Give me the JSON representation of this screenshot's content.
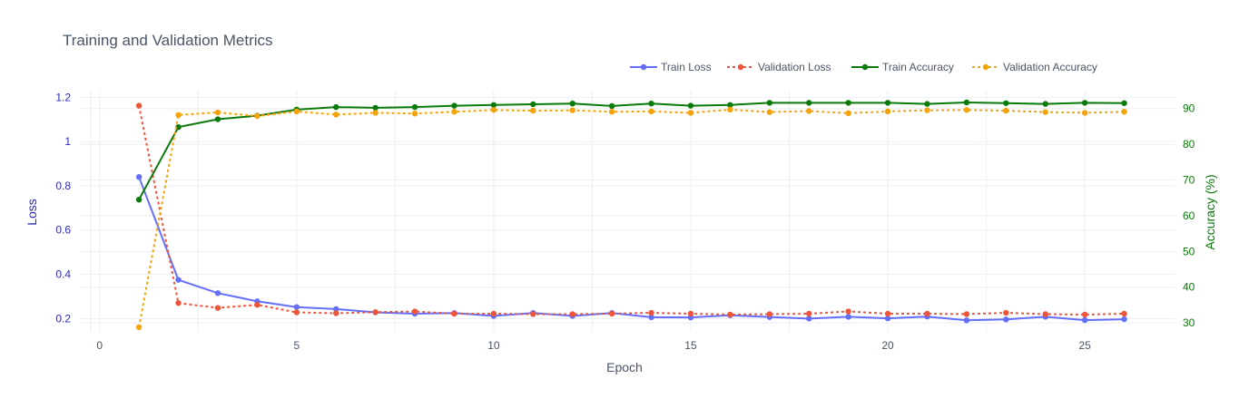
{
  "chart_data": {
    "type": "line",
    "title": "Training and Validation Metrics",
    "xlabel": "Epoch",
    "ylabel_left": "Loss",
    "ylabel_right": "Accuracy (%)",
    "xlim": [
      -0.5,
      27.3
    ],
    "ylim_left": [
      0.14,
      1.23
    ],
    "ylim_right": [
      27.5,
      95
    ],
    "x_ticks": [
      0,
      5,
      10,
      15,
      20,
      25
    ],
    "y_ticks_left": [
      0.2,
      0.4,
      0.6,
      0.8,
      1,
      1.2
    ],
    "y_ticks_left_labels": [
      "0.2",
      "0.4",
      "0.6",
      "0.8",
      "1",
      "1.2"
    ],
    "y_ticks_right": [
      30,
      40,
      50,
      60,
      70,
      80,
      90
    ],
    "grid": true,
    "legend_position": "top-right",
    "x": [
      1,
      2,
      3,
      4,
      5,
      6,
      7,
      8,
      9,
      10,
      11,
      12,
      13,
      14,
      15,
      16,
      17,
      18,
      19,
      20,
      21,
      22,
      23,
      24,
      25,
      26
    ],
    "series": [
      {
        "name": "Train Loss",
        "axis": "left",
        "color": "#636efa",
        "dash": "solid",
        "values": [
          0.84,
          0.375,
          0.315,
          0.278,
          0.252,
          0.243,
          0.228,
          0.222,
          0.225,
          0.212,
          0.225,
          0.212,
          0.225,
          0.206,
          0.205,
          0.215,
          0.207,
          0.2,
          0.208,
          0.201,
          0.209,
          0.192,
          0.196,
          0.208,
          0.193,
          0.197
        ]
      },
      {
        "name": "Validation Loss",
        "axis": "left",
        "color": "#ef553b",
        "dash": "dot",
        "values": [
          1.162,
          0.27,
          0.248,
          0.262,
          0.228,
          0.224,
          0.229,
          0.232,
          0.222,
          0.222,
          0.22,
          0.22,
          0.222,
          0.226,
          0.222,
          0.218,
          0.22,
          0.222,
          0.232,
          0.222,
          0.222,
          0.22,
          0.226,
          0.22,
          0.218,
          0.222
        ]
      },
      {
        "name": "Train Accuracy",
        "axis": "right",
        "color": "#0a7a0a",
        "dash": "solid",
        "values": [
          64.5,
          84.8,
          87.0,
          88.0,
          89.7,
          90.4,
          90.2,
          90.4,
          90.8,
          91.0,
          91.2,
          91.4,
          90.7,
          91.4,
          90.8,
          91.0,
          91.6,
          91.6,
          91.6,
          91.6,
          91.3,
          91.7,
          91.5,
          91.3,
          91.6,
          91.5
        ]
      },
      {
        "name": "Validation Accuracy",
        "axis": "right",
        "color": "#f5a30a",
        "dash": "dot",
        "values": [
          28.8,
          88.2,
          88.9,
          87.9,
          89.2,
          88.3,
          88.8,
          88.6,
          89.1,
          89.6,
          89.4,
          89.5,
          89.1,
          89.2,
          88.8,
          89.7,
          89.0,
          89.3,
          88.7,
          89.2,
          89.5,
          89.6,
          89.4,
          89.0,
          88.8,
          89.1
        ]
      }
    ]
  }
}
